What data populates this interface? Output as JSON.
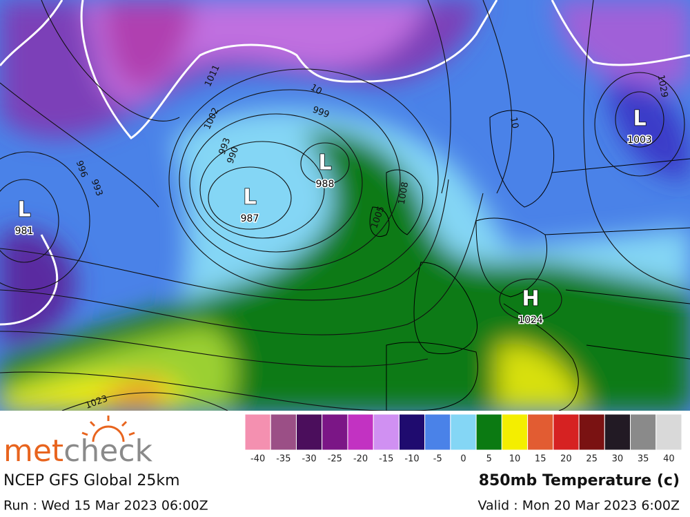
{
  "map": {
    "centers": [
      {
        "kind": "L",
        "value": "981"
      },
      {
        "kind": "L",
        "value": "987"
      },
      {
        "kind": "L",
        "value": "988"
      },
      {
        "kind": "L",
        "value": "1003"
      },
      {
        "kind": "H",
        "value": "1024"
      }
    ],
    "isobar_labels": [
      "1011",
      "1002",
      "999",
      "996",
      "993",
      "993",
      "990",
      "1005",
      "1008",
      "1023",
      "1029",
      "10",
      "10"
    ]
  },
  "legend": {
    "items": [
      {
        "label": "-40",
        "color": "#f490b0"
      },
      {
        "label": "-35",
        "color": "#9b4f86"
      },
      {
        "label": "-30",
        "color": "#4b0e5c"
      },
      {
        "label": "-25",
        "color": "#7b1686"
      },
      {
        "label": "-20",
        "color": "#c232c2"
      },
      {
        "label": "-15",
        "color": "#d090f2"
      },
      {
        "label": "-10",
        "color": "#1f0b6f"
      },
      {
        "label": "-5",
        "color": "#4a82e8"
      },
      {
        "label": "0",
        "color": "#84d6f5"
      },
      {
        "label": "5",
        "color": "#0b7a12"
      },
      {
        "label": "10",
        "color": "#f4ee00"
      },
      {
        "label": "15",
        "color": "#e25c32"
      },
      {
        "label": "20",
        "color": "#d62222"
      },
      {
        "label": "25",
        "color": "#7a1212"
      },
      {
        "label": "30",
        "color": "#221a24"
      },
      {
        "label": "35",
        "color": "#8a8a8a"
      },
      {
        "label": "40",
        "color": "#d9d9d9"
      }
    ]
  },
  "footer": {
    "logo": [
      "met",
      "check"
    ],
    "model": "NCEP GFS Global 25km",
    "run": "Run : Wed 15 Mar 2023 06:00Z",
    "product": "850mb Temperature (c)",
    "valid": "Valid : Mon 20 Mar 2023 6:00Z"
  }
}
